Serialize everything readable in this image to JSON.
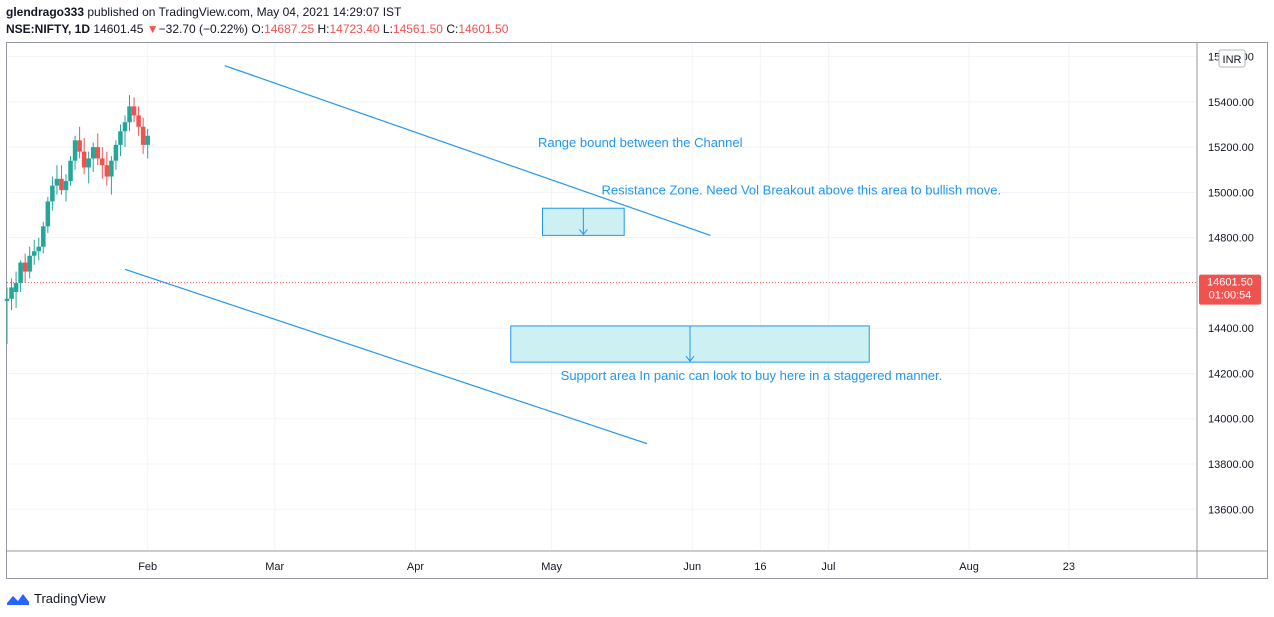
{
  "header": {
    "publisher": "glendrago333",
    "published_text": "published on TradingView.com, May 04, 2021 14:29:07 IST",
    "symbol": "NSE:NIFTY, 1D",
    "last": "14601.45",
    "change_arrow": "▼",
    "change": "−32.70 (−0.22%)",
    "o_label": "O:",
    "o_value": "14687.25",
    "h_label": "H:",
    "h_value": "14723.40",
    "l_label": "L:",
    "l_value": "14561.50",
    "c_label": "C:",
    "c_value": "14601.50"
  },
  "footer": {
    "brand": "TradingView",
    "logo_icon": "tradingview-logo-icon"
  },
  "colors": {
    "up": "#26a69a",
    "down": "#ef5350",
    "line": "#2196f3",
    "zone_fill": "#cdf0f3",
    "grid": "#f0f3fa"
  },
  "chart_data": {
    "type": "candlestick",
    "currency": "INR",
    "y_ticks": [
      "15600.00",
      "15400.00",
      "15200.00",
      "15000.00",
      "14800.00",
      "14400.00",
      "14200.00",
      "14000.00",
      "13800.00",
      "13600.00"
    ],
    "y_tick_values": [
      15600,
      15400,
      15200,
      15000,
      14800,
      14400,
      14200,
      14000,
      13800,
      13600
    ],
    "ylim": [
      13420,
      15660
    ],
    "x_ticks": [
      "Feb",
      "Mar",
      "Apr",
      "May",
      "Jun",
      "16",
      "Jul",
      "Aug",
      "23"
    ],
    "x_tick_days": [
      31,
      59,
      90,
      120,
      151,
      166,
      181,
      212,
      234
    ],
    "xlim": [
      0,
      262
    ],
    "last_price_label": "14601.50",
    "countdown_label": "01:00:54",
    "candles": [
      [
        0,
        14520,
        14580,
        14330,
        14530
      ],
      [
        1,
        14530,
        14620,
        14480,
        14580
      ],
      [
        2,
        14560,
        14650,
        14490,
        14600
      ],
      [
        3,
        14600,
        14700,
        14560,
        14690
      ],
      [
        4,
        14690,
        14730,
        14600,
        14650
      ],
      [
        5,
        14650,
        14760,
        14620,
        14720
      ],
      [
        6,
        14720,
        14790,
        14680,
        14740
      ],
      [
        7,
        14740,
        14800,
        14700,
        14760
      ],
      [
        8,
        14760,
        14870,
        14730,
        14850
      ],
      [
        9,
        14850,
        14980,
        14820,
        14960
      ],
      [
        10,
        14960,
        15070,
        14920,
        15030
      ],
      [
        11,
        15030,
        15120,
        14990,
        15060
      ],
      [
        12,
        15060,
        15120,
        14990,
        15010
      ],
      [
        13,
        15010,
        15080,
        14960,
        15050
      ],
      [
        14,
        15050,
        15160,
        15030,
        15140
      ],
      [
        15,
        15140,
        15250,
        15100,
        15230
      ],
      [
        16,
        15230,
        15290,
        15150,
        15180
      ],
      [
        17,
        15180,
        15240,
        15080,
        15110
      ],
      [
        18,
        15110,
        15180,
        15040,
        15150
      ],
      [
        19,
        15150,
        15220,
        15090,
        15200
      ],
      [
        20,
        15200,
        15260,
        15120,
        15150
      ],
      [
        21,
        15150,
        15200,
        15060,
        15120
      ],
      [
        22,
        15120,
        15180,
        15030,
        15070
      ],
      [
        23,
        15070,
        15160,
        14990,
        15140
      ],
      [
        24,
        15140,
        15230,
        15100,
        15210
      ],
      [
        25,
        15210,
        15300,
        15160,
        15270
      ],
      [
        26,
        15270,
        15340,
        15200,
        15310
      ],
      [
        27,
        15310,
        15430,
        15270,
        15380
      ],
      [
        28,
        15380,
        15420,
        15310,
        15340
      ],
      [
        29,
        15340,
        15380,
        15250,
        15290
      ],
      [
        30,
        15290,
        15330,
        15170,
        15210
      ],
      [
        31,
        15210,
        15280,
        15150,
        15250
      ]
    ],
    "lines": [
      {
        "name": "upper-channel",
        "x1": 48,
        "y1": 15560,
        "x2": 155,
        "y2": 14810
      },
      {
        "name": "lower-channel",
        "x1": 26,
        "y1": 14660,
        "x2": 141,
        "y2": 13890
      }
    ],
    "zones": [
      {
        "name": "resistance-zone",
        "x1": 118,
        "x2": 136,
        "y_top": 14930,
        "y_bottom": 14810
      },
      {
        "name": "support-zone",
        "x1": 111,
        "x2": 190,
        "y_top": 14410,
        "y_bottom": 14250
      }
    ],
    "annotations": [
      {
        "name": "annotation-channel",
        "text": "Range bound between the Channel",
        "x": 117,
        "y": 15200
      },
      {
        "name": "annotation-resistance",
        "text": "Resistance Zone. Need Vol Breakout above this area to bullish move.",
        "x": 131,
        "y": 14990
      },
      {
        "name": "annotation-support",
        "text": "Support area In panic can look to buy here in a staggered manner.",
        "x": 122,
        "y": 14170
      }
    ]
  }
}
